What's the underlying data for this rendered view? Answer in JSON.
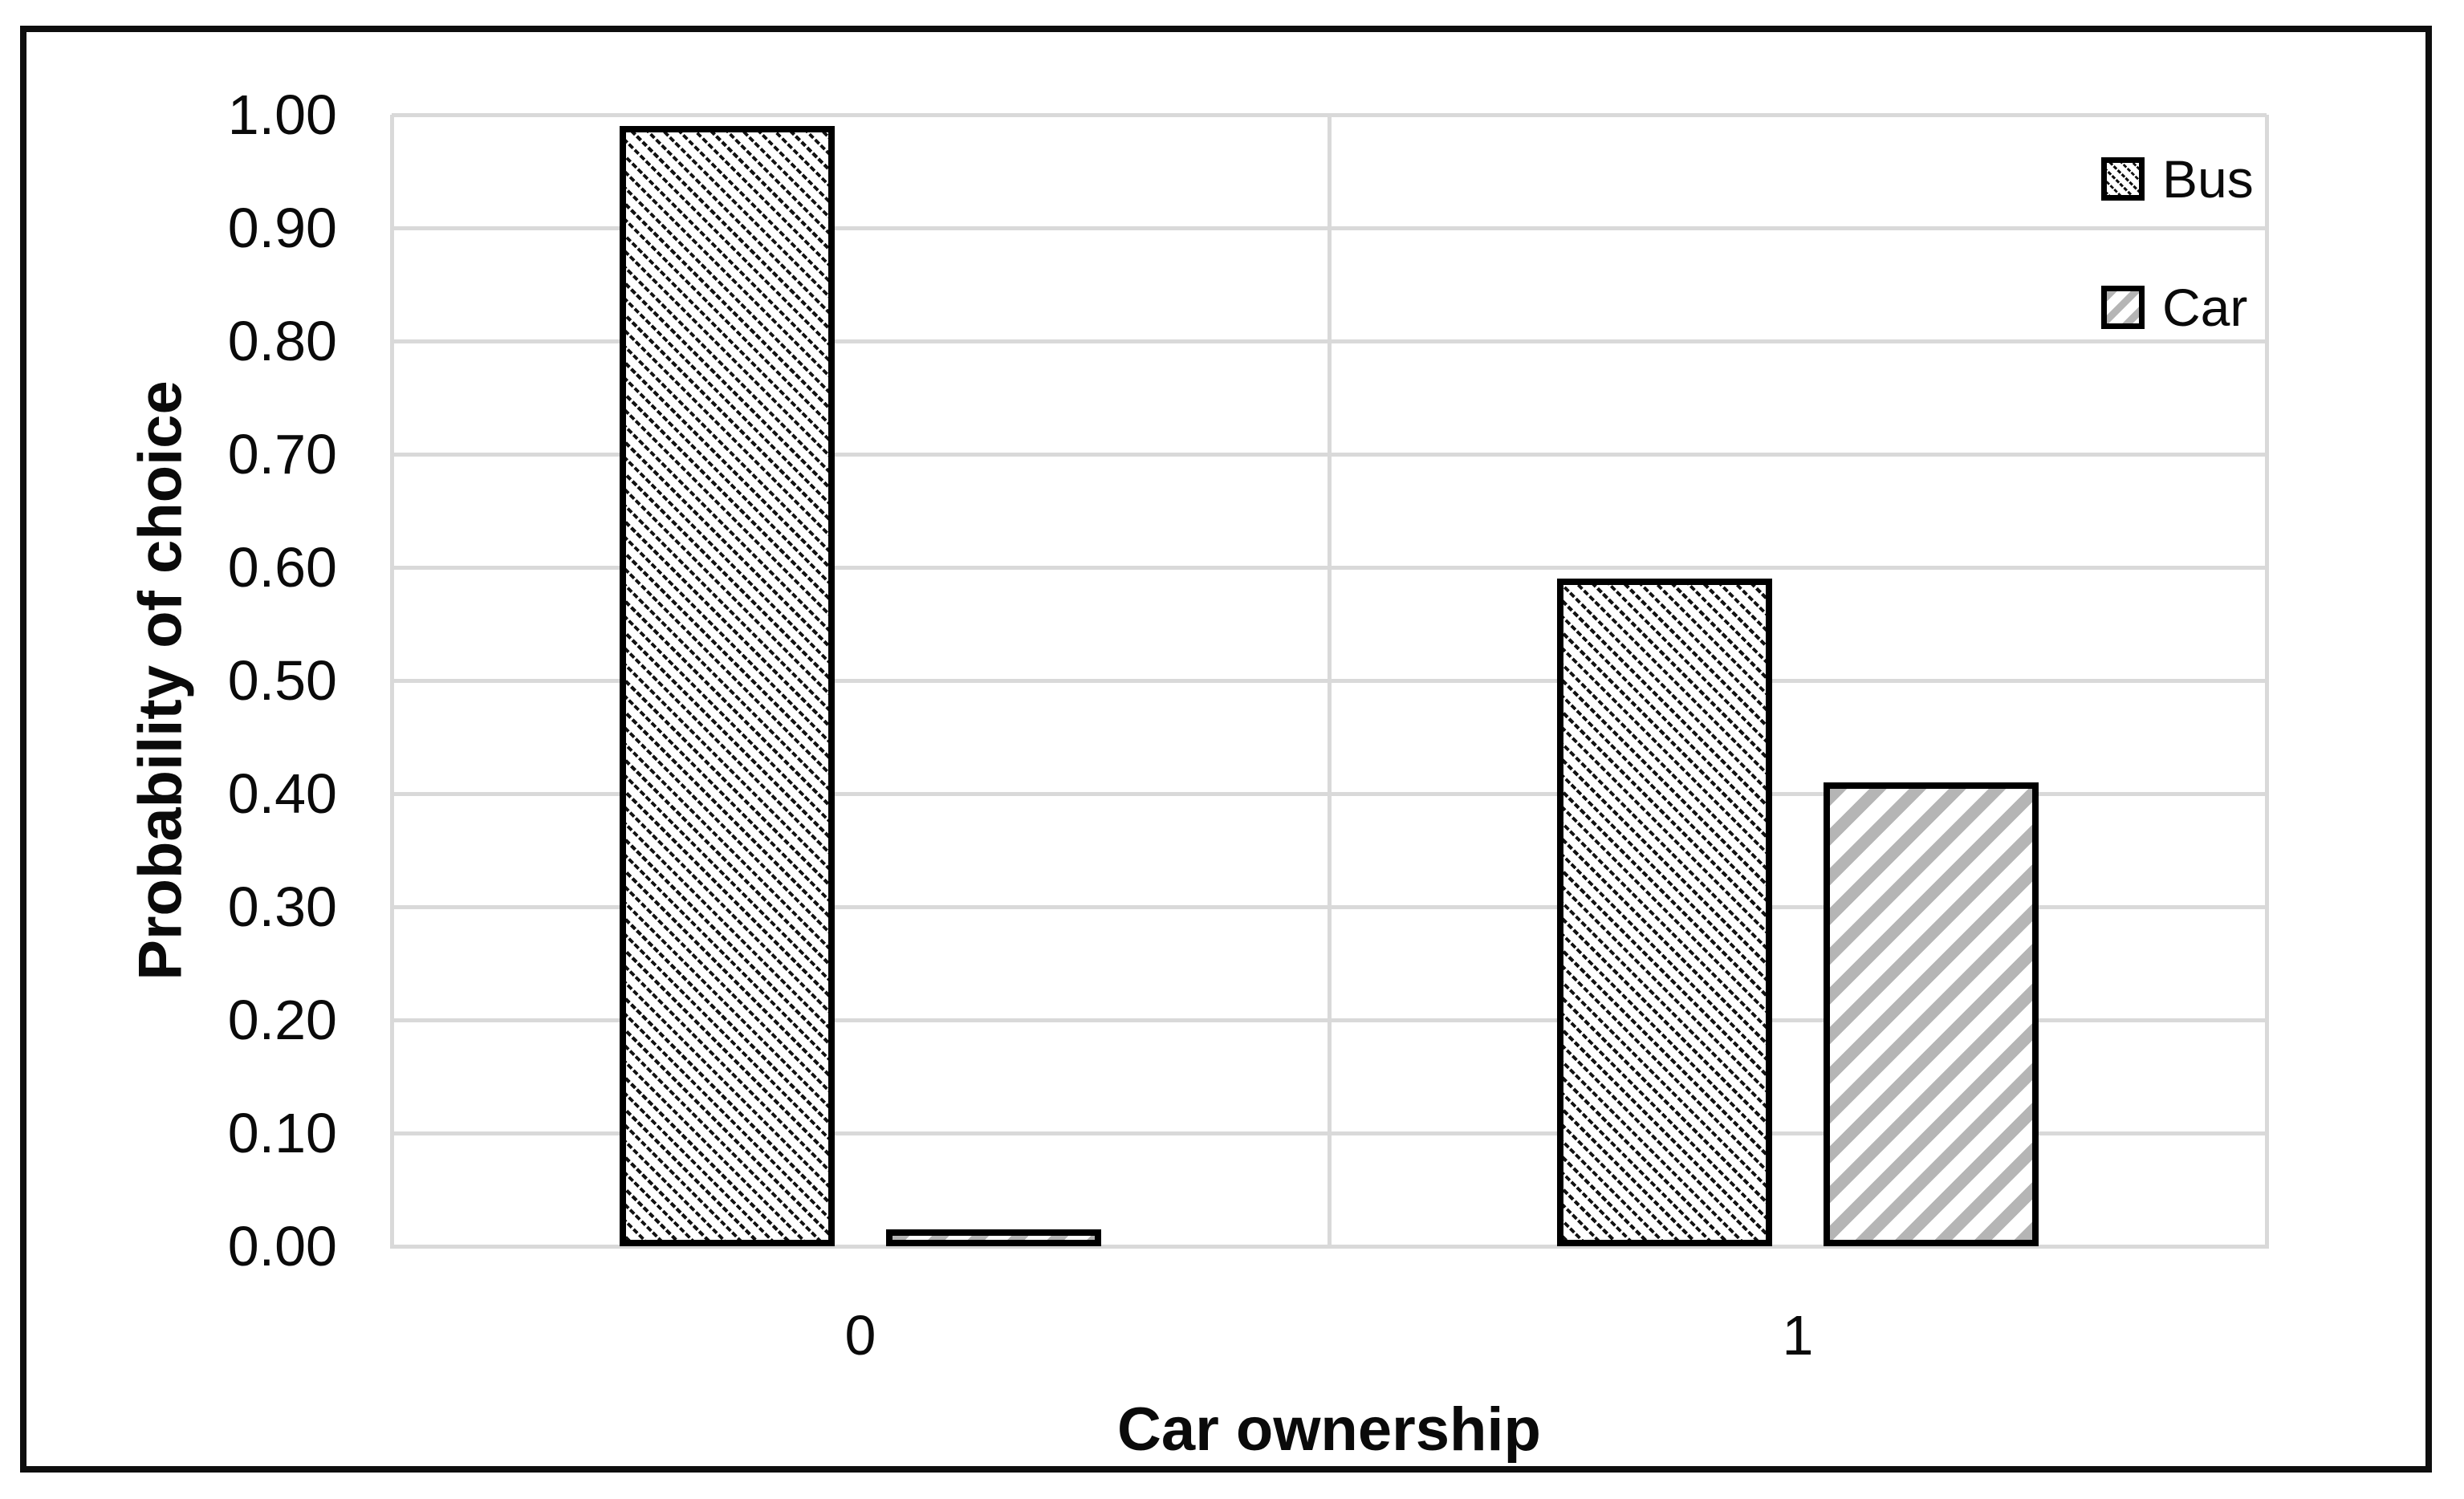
{
  "figure": {
    "background": "#ffffff",
    "frame_color": "#0e0e0e"
  },
  "chart_data": {
    "type": "bar",
    "title": "",
    "xlabel": "Car ownership",
    "ylabel": "Probability of choice",
    "categories": [
      "0",
      "1"
    ],
    "series": [
      {
        "name": "Bus",
        "values": [
          0.99,
          0.59
        ]
      },
      {
        "name": "Car",
        "values": [
          0.015,
          0.41
        ]
      }
    ],
    "ylim": [
      0.0,
      1.0
    ],
    "ytick_step": 0.1,
    "y_tick_labels": [
      "0.00",
      "0.10",
      "0.20",
      "0.30",
      "0.40",
      "0.50",
      "0.60",
      "0.70",
      "0.80",
      "0.90",
      "1.00"
    ],
    "grid": "horizontal major gridlines plus vertical category-boundary gridlines",
    "legend_position": "top-right inside plot",
    "legend_entries": [
      "Bus",
      "Car"
    ],
    "colors": {
      "bus_hatch": "#121212",
      "car_hatch": "#b5b5b5",
      "bar_border": "#000000",
      "gridline": "#d9d9d9",
      "text": "#0a0a0a"
    },
    "patterns": {
      "bus": "thin black dashed diagonal hatch, bottom-left to top-right",
      "car": "thick gray diagonal hatch, top-left to bottom-right"
    }
  }
}
